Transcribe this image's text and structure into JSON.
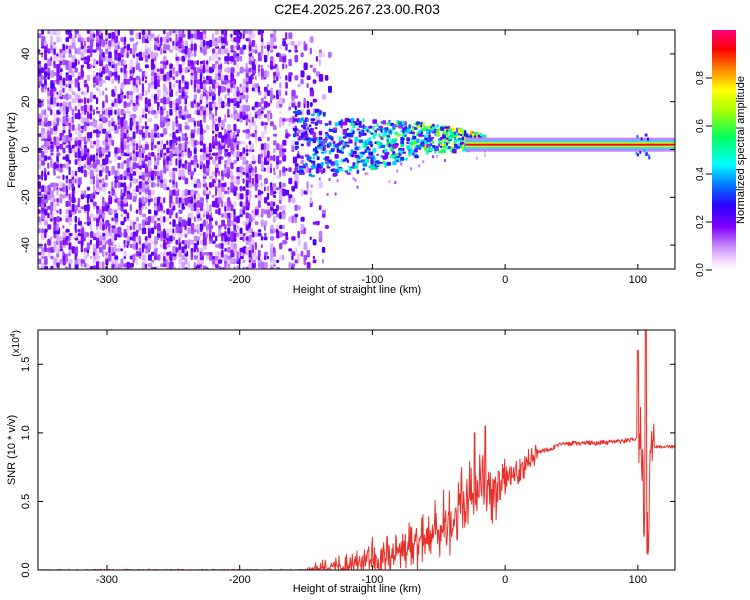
{
  "title": "C2E4.2025.267.23.00.R03",
  "chart_data": [
    {
      "type": "heatmap",
      "xlabel": "Height of straight line (km)",
      "ylabel": "Frequency (Hz)",
      "xlim": [
        -352,
        128
      ],
      "ylim": [
        -50,
        50
      ],
      "xticks": [
        -300,
        -200,
        -100,
        0,
        100
      ],
      "yticks": [
        -40,
        -20,
        0,
        20,
        40
      ],
      "colorbar": {
        "label": "Normalized spectral amplitude",
        "range": [
          0,
          1
        ],
        "ticks": [
          0.0,
          0.2,
          0.4,
          0.6,
          0.8
        ],
        "colors": [
          "#ffffff",
          "#e6b3ff",
          "#8000ff",
          "#0000ff",
          "#00ffff",
          "#00ff00",
          "#ffff00",
          "#ff8000",
          "#ff0000",
          "#ff0080"
        ]
      },
      "features": {
        "noise_region_x": [
          -352,
          -150
        ],
        "band_start_x": -160,
        "band_end_x": -30,
        "line_x": [
          -30,
          128
        ],
        "line_freq_hz": 2,
        "line_amplitude": 0.85,
        "band_amplitude_peak": 0.45
      }
    },
    {
      "type": "line",
      "xlabel": "Height of straight line (km)",
      "ylabel": "SNR (10 * v/v)",
      "yscale_label": "(x10",
      "yscale_exp": "4",
      "xlim": [
        -352,
        128
      ],
      "ylim": [
        0,
        1.75
      ],
      "xticks": [
        -300,
        -200,
        -100,
        0,
        100
      ],
      "yticks": [
        0.0,
        0.5,
        1.0,
        1.5
      ],
      "ytick_labels": [
        "0.0",
        "0.5",
        "1.0",
        "1.5"
      ],
      "color": "#e8302a",
      "profile": [
        [
          -352,
          0.0
        ],
        [
          -150,
          0.0
        ],
        [
          -120,
          0.03
        ],
        [
          -100,
          0.07
        ],
        [
          -80,
          0.12
        ],
        [
          -60,
          0.25
        ],
        [
          -40,
          0.38
        ],
        [
          -25,
          0.55
        ],
        [
          -10,
          0.62
        ],
        [
          0,
          0.68
        ],
        [
          10,
          0.72
        ],
        [
          25,
          0.86
        ],
        [
          45,
          0.92
        ],
        [
          80,
          0.93
        ],
        [
          98,
          0.95
        ],
        [
          100,
          0.97
        ],
        [
          103,
          0.9
        ],
        [
          105,
          0.3
        ],
        [
          107,
          0.1
        ],
        [
          110,
          0.9
        ],
        [
          128,
          0.9
        ]
      ],
      "spikes": [
        [
          -23,
          1.0
        ],
        [
          -15,
          1.05
        ],
        [
          -5,
          0.72
        ],
        [
          100,
          1.6
        ],
        [
          106,
          1.75
        ]
      ]
    }
  ]
}
